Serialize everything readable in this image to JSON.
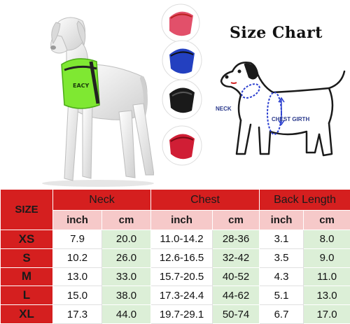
{
  "title": "Size Chart",
  "labels": {
    "neck": "NECK",
    "chest_girth": "CHEST GIRTH"
  },
  "harness_text": "EACY",
  "harness_colors": [
    "#e2506a",
    "#2340c0",
    "#1a1a1a",
    "#d01e35"
  ],
  "harness_main_color": "#7fe832",
  "table": {
    "size_header": "SIZE",
    "groups": [
      "Neck",
      "Chest",
      "Back Length"
    ],
    "units": [
      "inch",
      "cm",
      "inch",
      "cm",
      "inch",
      "cm"
    ],
    "rows": [
      {
        "size": "XS",
        "cells": [
          "7.9",
          "20.0",
          "11.0-14.2",
          "28-36",
          "3.1",
          "8.0"
        ]
      },
      {
        "size": "S",
        "cells": [
          "10.2",
          "26.0",
          "12.6-16.5",
          "32-42",
          "3.5",
          "9.0"
        ]
      },
      {
        "size": "M",
        "cells": [
          "13.0",
          "33.0",
          "15.7-20.5",
          "40-52",
          "4.3",
          "11.0"
        ]
      },
      {
        "size": "L",
        "cells": [
          "15.0",
          "38.0",
          "17.3-24.4",
          "44-62",
          "5.1",
          "13.0"
        ]
      },
      {
        "size": "XL",
        "cells": [
          "17.3",
          "44.0",
          "19.7-29.1",
          "50-74",
          "6.7",
          "17.0"
        ]
      }
    ]
  }
}
